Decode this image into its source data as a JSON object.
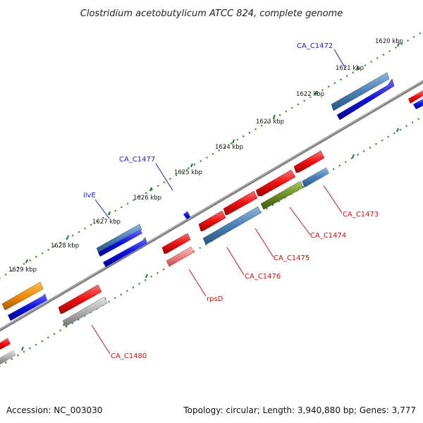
{
  "title": "Clostridium acetobutylicum ATCC 824, complete genome",
  "footer": {
    "accession": "Accession: NC_003030",
    "summary": "Topology: circular; Length: 3,940,880 bp; Genes: 3,777"
  },
  "ticks": [
    {
      "label": "1620 kbp"
    },
    {
      "label": "1621 kbp"
    },
    {
      "label": "1622 kbp"
    },
    {
      "label": "1623 kbp"
    },
    {
      "label": "1624 kbp"
    },
    {
      "label": "1625 kbp"
    },
    {
      "label": "1626 kbp"
    },
    {
      "label": "1627 kbp"
    },
    {
      "label": "1628 kbp"
    },
    {
      "label": "1629 kbp"
    }
  ],
  "gene_labels": [
    {
      "text": "CA_C1472",
      "color": "#1a1ad0"
    },
    {
      "text": "CA_C1477",
      "color": "#1a1ad0"
    },
    {
      "text": "ilvE",
      "color": "#1a1ad0"
    },
    {
      "text": "CA_C1473",
      "color": "#d01010"
    },
    {
      "text": "CA_C1474",
      "color": "#d01010"
    },
    {
      "text": "CA_C1475",
      "color": "#d01010"
    },
    {
      "text": "CA_C1476",
      "color": "#d01010"
    },
    {
      "text": "rpsD",
      "color": "#d01010"
    },
    {
      "text": "CA_C1480",
      "color": "#d01010"
    }
  ],
  "colors": {
    "backbone": "#808080",
    "forward_cds": "#1010e0",
    "reverse_cds": "#ee1010",
    "steel": "#4a7fb5",
    "olive": "#6b8e23",
    "orange": "#f08c00",
    "gray": "#a8a8a8",
    "pink": "#f08080",
    "tick": "#1a7a1a"
  }
}
